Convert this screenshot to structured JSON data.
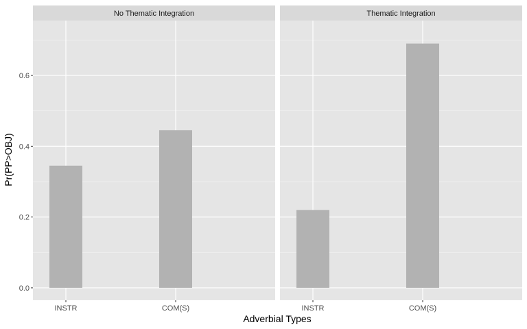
{
  "chart_data": {
    "type": "bar",
    "ylabel": "Pr(PP>OBJ)",
    "xlabel": "Adverbial Types",
    "categories": [
      "INSTR",
      "COM(S)"
    ],
    "ylim": [
      -0.035,
      0.755
    ],
    "yticks": [
      0.0,
      0.2,
      0.4,
      0.6
    ],
    "ytick_labels": [
      "0.0",
      "0.2",
      "0.4",
      "0.6"
    ],
    "grid": true,
    "facets": [
      {
        "title": "No Thematic Integration",
        "values": [
          0.345,
          0.445
        ]
      },
      {
        "title": "Thematic Integration",
        "values": [
          0.22,
          0.69
        ]
      }
    ],
    "colors": {
      "panel_background": "#e5e5e5",
      "strip_background": "#d9d9d9",
      "grid_major": "#ffffff",
      "grid_minor": "#f2f2f2",
      "bar_fill": "#b2b2b2"
    }
  }
}
